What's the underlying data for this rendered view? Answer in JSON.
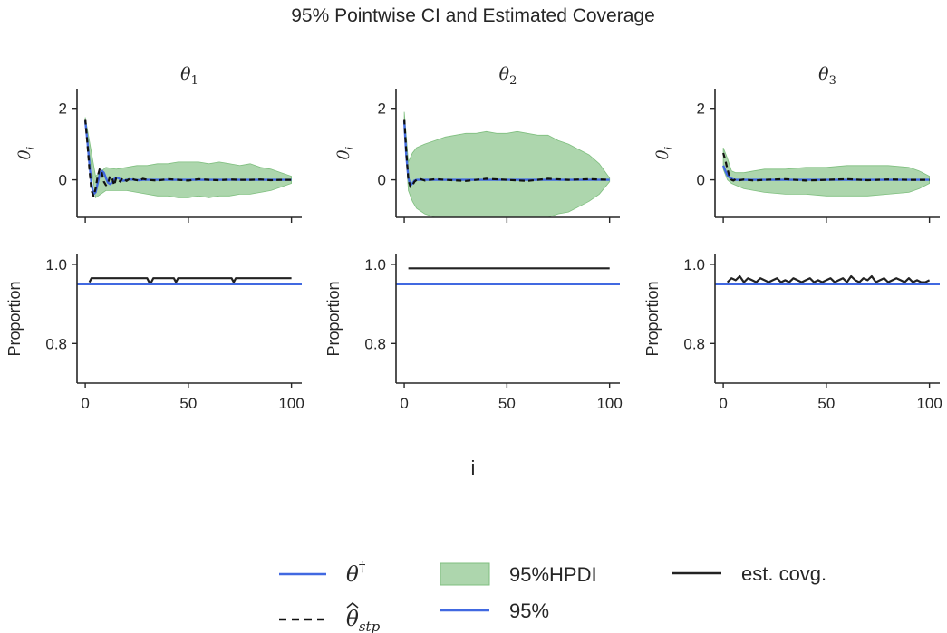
{
  "chart_data": {
    "type": "line",
    "title": "95% Pointwise CI and Estimated Coverage",
    "xlabel": "i",
    "xlim": [
      -4,
      105
    ],
    "xticks": [
      0,
      50,
      100
    ],
    "panels": [
      {
        "title_base": "θ",
        "title_sub": "1",
        "ylabel_base": "θ",
        "ylabel_sub": "i",
        "ylim": [
          -1.05,
          2.55
        ],
        "yticks": [
          0,
          2
        ],
        "truth_x": [
          0,
          1,
          2,
          3,
          4,
          5,
          6,
          7,
          8,
          9,
          10,
          11,
          12,
          13,
          14,
          15,
          16,
          17,
          18,
          19,
          20,
          22,
          24,
          26,
          28,
          30,
          35,
          40,
          50,
          60,
          70,
          80,
          90,
          100
        ],
        "truth_y": [
          1.65,
          1.1,
          0.45,
          -0.1,
          -0.4,
          -0.35,
          -0.1,
          0.15,
          0.25,
          0.2,
          0.05,
          -0.08,
          -0.12,
          -0.08,
          0.02,
          0.06,
          0.05,
          0.01,
          -0.02,
          -0.02,
          0.0,
          0.01,
          0.0,
          -0.01,
          0.0,
          0.0,
          0.0,
          0.0,
          0.0,
          0.0,
          0.0,
          0.0,
          0.0,
          0.0
        ],
        "estimate_x": [
          0,
          1,
          2,
          3,
          4,
          5,
          6,
          7,
          8,
          9,
          10,
          11,
          12,
          13,
          14,
          15,
          16,
          17,
          18,
          19,
          20,
          22,
          24,
          26,
          28,
          30,
          35,
          40,
          45,
          50,
          55,
          60,
          65,
          70,
          75,
          80,
          85,
          90,
          95,
          100
        ],
        "estimate_y": [
          1.7,
          1.05,
          0.3,
          -0.3,
          -0.45,
          -0.25,
          0.1,
          0.3,
          0.2,
          -0.05,
          -0.15,
          -0.1,
          0.1,
          0.05,
          -0.15,
          0.05,
          0.0,
          -0.05,
          0.05,
          0.02,
          -0.03,
          0.05,
          0.0,
          -0.02,
          0.03,
          0.0,
          -0.02,
          0.02,
          0.0,
          -0.02,
          0.02,
          0.0,
          -0.01,
          0.01,
          0.0,
          0.0,
          0.01,
          -0.01,
          0.0,
          0.0
        ],
        "hpdi_x": [
          0,
          5,
          10,
          15,
          20,
          25,
          30,
          35,
          40,
          45,
          50,
          55,
          60,
          65,
          70,
          75,
          80,
          85,
          90,
          95,
          100
        ],
        "hpdi_low": [
          1.6,
          -0.5,
          -0.3,
          -0.3,
          -0.3,
          -0.35,
          -0.4,
          -0.45,
          -0.45,
          -0.5,
          -0.5,
          -0.45,
          -0.5,
          -0.45,
          -0.45,
          -0.4,
          -0.4,
          -0.35,
          -0.3,
          -0.2,
          -0.1
        ],
        "hpdi_high": [
          1.75,
          0.1,
          0.35,
          0.3,
          0.35,
          0.4,
          0.4,
          0.45,
          0.45,
          0.5,
          0.5,
          0.5,
          0.45,
          0.5,
          0.45,
          0.4,
          0.45,
          0.35,
          0.3,
          0.2,
          0.1
        ],
        "coverage_ylabel": "Proportion",
        "coverage_ylim": [
          0.7,
          1.025
        ],
        "coverage_yticks": [
          0.8,
          1.0
        ],
        "coverage_level": 0.95,
        "coverage_x": [
          2,
          3,
          4,
          30,
          31,
          32,
          33,
          34,
          43,
          44,
          45,
          71,
          72,
          73,
          100
        ],
        "coverage_y": [
          0.955,
          0.965,
          0.965,
          0.965,
          0.955,
          0.955,
          0.965,
          0.965,
          0.965,
          0.955,
          0.965,
          0.965,
          0.955,
          0.965,
          0.965
        ]
      },
      {
        "title_base": "θ",
        "title_sub": "2",
        "ylabel_base": "θ",
        "ylabel_sub": "i",
        "ylim": [
          -1.05,
          2.55
        ],
        "yticks": [
          0,
          2
        ],
        "truth_x": [
          0,
          1,
          2,
          3,
          4,
          5,
          6,
          8,
          10,
          15,
          20,
          100
        ],
        "truth_y": [
          1.65,
          0.7,
          0.05,
          -0.15,
          -0.1,
          -0.02,
          0.0,
          0.0,
          0.0,
          0.0,
          0.0,
          0.0
        ],
        "estimate_x": [
          0,
          1,
          2,
          3,
          4,
          5,
          6,
          8,
          10,
          15,
          20,
          30,
          40,
          50,
          60,
          70,
          80,
          90,
          100
        ],
        "estimate_y": [
          1.7,
          0.8,
          0.0,
          -0.2,
          -0.15,
          -0.05,
          0.0,
          0.02,
          -0.02,
          0.02,
          0.0,
          -0.03,
          0.03,
          0.0,
          -0.03,
          0.03,
          0.0,
          0.02,
          0.0
        ],
        "hpdi_x": [
          0,
          2,
          4,
          6,
          10,
          15,
          20,
          25,
          30,
          35,
          40,
          45,
          50,
          55,
          60,
          65,
          70,
          75,
          80,
          85,
          90,
          95,
          100
        ],
        "hpdi_low": [
          1.5,
          -0.3,
          -0.6,
          -0.8,
          -0.95,
          -1.05,
          -1.05,
          -1.05,
          -1.05,
          -1.05,
          -1.05,
          -1.05,
          -1.05,
          -1.05,
          -1.05,
          -1.05,
          -1.05,
          -0.95,
          -0.9,
          -0.75,
          -0.6,
          -0.4,
          -0.05
        ],
        "hpdi_high": [
          1.9,
          0.5,
          0.75,
          0.9,
          1.0,
          1.1,
          1.2,
          1.25,
          1.3,
          1.3,
          1.35,
          1.3,
          1.3,
          1.35,
          1.3,
          1.25,
          1.25,
          1.1,
          1.0,
          0.85,
          0.7,
          0.45,
          0.05
        ],
        "coverage_ylabel": "Proportion",
        "coverage_ylim": [
          0.7,
          1.025
        ],
        "coverage_yticks": [
          0.8,
          1.0
        ],
        "coverage_level": 0.95,
        "coverage_x": [
          2,
          100
        ],
        "coverage_y": [
          0.99,
          0.99
        ]
      },
      {
        "title_base": "θ",
        "title_sub": "3",
        "ylabel_base": "θ",
        "ylabel_sub": "i",
        "ylim": [
          -1.05,
          2.55
        ],
        "yticks": [
          0,
          2
        ],
        "truth_x": [
          0,
          1,
          2,
          3,
          4,
          5,
          6,
          8,
          10,
          20,
          100
        ],
        "truth_y": [
          0.4,
          0.25,
          0.13,
          0.07,
          0.03,
          0.01,
          0.0,
          0.0,
          0.0,
          0.0,
          0.0
        ],
        "estimate_x": [
          0,
          1,
          2,
          3,
          4,
          5,
          6,
          8,
          10,
          15,
          20,
          30,
          40,
          50,
          60,
          70,
          80,
          90,
          100
        ],
        "estimate_y": [
          0.75,
          0.55,
          0.3,
          0.1,
          0.0,
          -0.02,
          0.02,
          -0.01,
          0.01,
          -0.02,
          0.0,
          0.02,
          -0.02,
          0.0,
          0.02,
          -0.01,
          0.01,
          0.0,
          0.0
        ],
        "hpdi_x": [
          0,
          2,
          4,
          6,
          10,
          15,
          20,
          30,
          40,
          50,
          60,
          70,
          80,
          90,
          95,
          100
        ],
        "hpdi_low": [
          0.3,
          0.0,
          -0.1,
          -0.15,
          -0.25,
          -0.3,
          -0.35,
          -0.4,
          -0.4,
          -0.45,
          -0.45,
          -0.45,
          -0.4,
          -0.35,
          -0.25,
          -0.1
        ],
        "hpdi_high": [
          0.9,
          0.6,
          0.25,
          0.2,
          0.2,
          0.25,
          0.3,
          0.3,
          0.35,
          0.35,
          0.4,
          0.4,
          0.4,
          0.35,
          0.25,
          0.1
        ],
        "coverage_ylabel": "Proportion",
        "coverage_ylim": [
          0.7,
          1.025
        ],
        "coverage_yticks": [
          0.8,
          1.0
        ],
        "coverage_level": 0.95,
        "coverage_x": [
          2,
          4,
          6,
          8,
          10,
          12,
          14,
          16,
          18,
          20,
          22,
          24,
          26,
          28,
          30,
          32,
          34,
          36,
          38,
          40,
          42,
          44,
          46,
          48,
          50,
          52,
          54,
          56,
          58,
          60,
          62,
          64,
          66,
          68,
          70,
          72,
          74,
          76,
          78,
          80,
          82,
          84,
          86,
          88,
          90,
          92,
          94,
          96,
          98,
          100
        ],
        "coverage_y": [
          0.955,
          0.965,
          0.96,
          0.97,
          0.955,
          0.965,
          0.96,
          0.955,
          0.965,
          0.96,
          0.955,
          0.96,
          0.965,
          0.955,
          0.96,
          0.955,
          0.965,
          0.96,
          0.955,
          0.96,
          0.965,
          0.955,
          0.96,
          0.955,
          0.96,
          0.965,
          0.955,
          0.96,
          0.965,
          0.955,
          0.97,
          0.96,
          0.955,
          0.965,
          0.96,
          0.97,
          0.955,
          0.96,
          0.965,
          0.955,
          0.96,
          0.965,
          0.96,
          0.955,
          0.965,
          0.955,
          0.96,
          0.955,
          0.955,
          0.96
        ]
      }
    ],
    "legend": {
      "placement": "bottom-center",
      "truth_base": "θ",
      "truth_sup": "†",
      "estimate_base": "θ",
      "estimate_sub": "stp",
      "hpdi": "95%HPDI",
      "level": "95%",
      "coverage": "est. covg."
    },
    "colors": {
      "truth": "#4169e1",
      "estimate": "#111111",
      "hpdi_fill": "#9fcf9f",
      "hpdi_edge": "#7fbf7f",
      "level": "#4169e1",
      "coverage": "#222222",
      "axis": "#262626"
    }
  }
}
